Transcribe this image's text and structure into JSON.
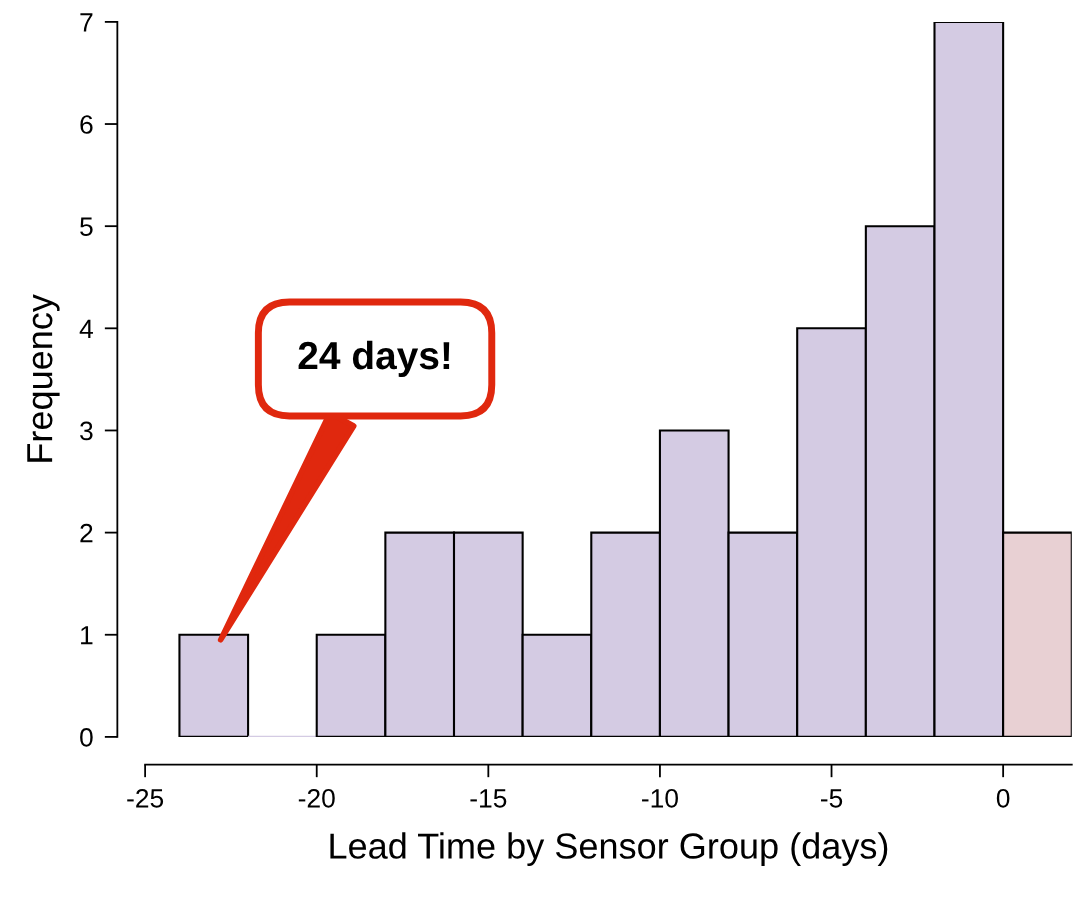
{
  "chart_data": {
    "type": "histogram",
    "xlabel": "Lead Time by Sensor Group (days)",
    "ylabel": "Frequency",
    "bins": [
      -24,
      -22,
      -20,
      -18,
      -16,
      -14,
      -12,
      -10,
      -8,
      -6,
      -4,
      -2,
      0,
      2
    ],
    "values": [
      1,
      0,
      1,
      2,
      2,
      1,
      2,
      3,
      2,
      4,
      5,
      7,
      2
    ],
    "colors": [
      "#d4cbe3",
      "#d4cbe3",
      "#d4cbe3",
      "#d4cbe3",
      "#d4cbe3",
      "#d4cbe3",
      "#d4cbe3",
      "#d4cbe3",
      "#d4cbe3",
      "#d4cbe3",
      "#d4cbe3",
      "#d4cbe3",
      "#e8d0d3"
    ],
    "xlim": [
      -25,
      2
    ],
    "ylim": [
      0,
      7
    ],
    "xticks": [
      -25,
      -20,
      -15,
      -10,
      -5,
      0
    ],
    "yticks": [
      0,
      1,
      2,
      3,
      4,
      5,
      6,
      7
    ],
    "grid": false,
    "annotations": [
      "24 days!"
    ]
  }
}
